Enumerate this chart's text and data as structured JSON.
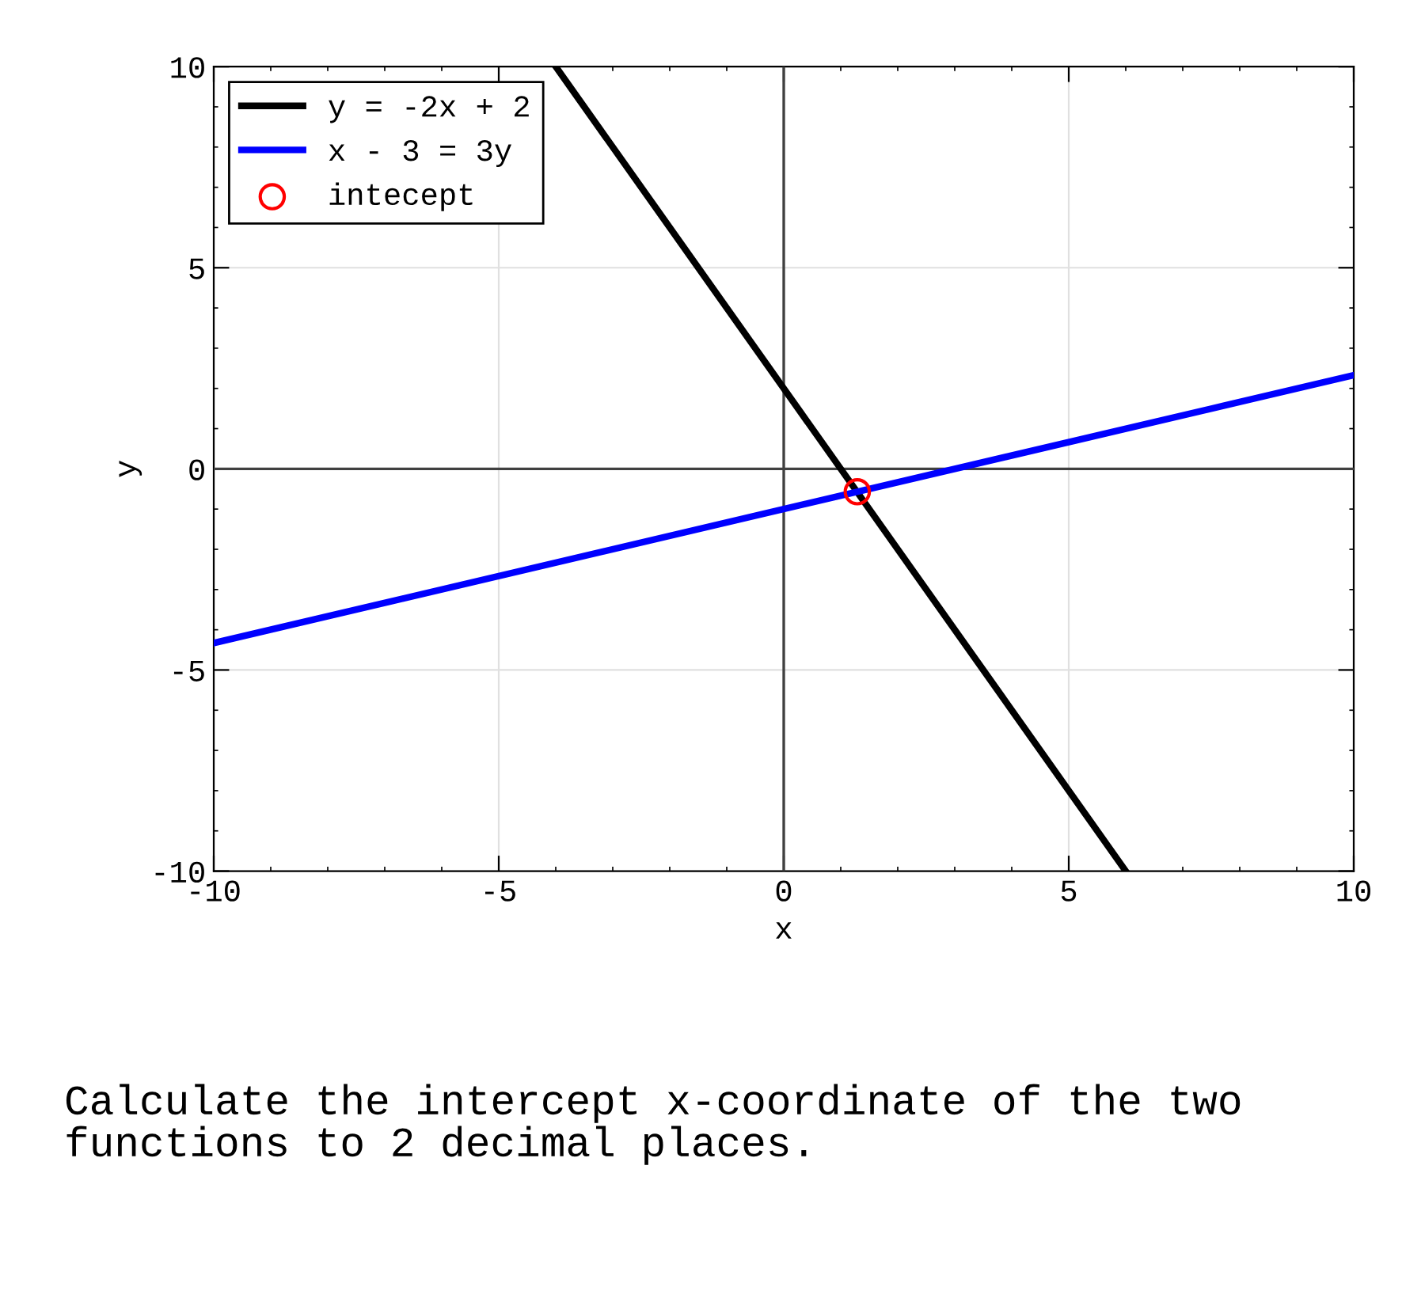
{
  "chart_data": {
    "type": "line",
    "xlabel": "x",
    "ylabel": "y",
    "xlim": [
      -10,
      10
    ],
    "ylim": [
      -10,
      10
    ],
    "xticks": [
      -10,
      -5,
      0,
      5,
      10
    ],
    "yticks": [
      -10,
      -5,
      0,
      5,
      10
    ],
    "grid": true,
    "legend": "top left",
    "series": [
      {
        "color": "#404040",
        "x": [
          0,
          0
        ],
        "values": [
          -10,
          10
        ]
      },
      {
        "color": "#404040",
        "x": [
          -10,
          10
        ],
        "values": [
          0,
          0
        ]
      },
      {
        "name": "y = -2x + 2",
        "color": "#000000",
        "x": [
          -4,
          6
        ],
        "values": [
          10,
          -10
        ]
      },
      {
        "name": "x - 3 = 3y",
        "color": "#0000ff",
        "x": [
          -10,
          10
        ],
        "values": [
          -4.33,
          2.33
        ]
      },
      {
        "name": "intecept",
        "type": "scatter",
        "marker": "circle",
        "color": "#ff0000",
        "x": [
          1.29
        ],
        "values": [
          -0.57
        ]
      }
    ],
    "annotations": [
      "Calculate the intercept x-coordinate of the two functions to 2 decimal places."
    ]
  }
}
